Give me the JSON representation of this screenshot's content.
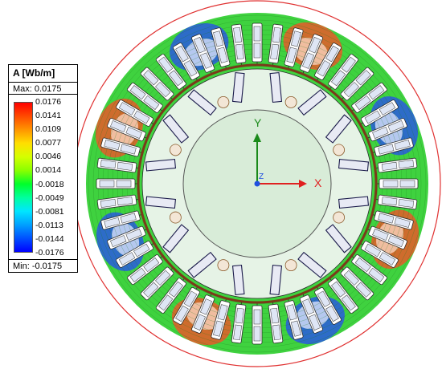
{
  "legend": {
    "title": "A [Wb/m]",
    "max_label": "Max: 0.0175",
    "min_label": "Min: -0.0175",
    "ticks": [
      "0.0176",
      "0.0141",
      "0.0109",
      "0.0077",
      "0.0046",
      "0.0014",
      "-0.0018",
      "-0.0049",
      "-0.0081",
      "-0.0113",
      "-0.0144",
      "-0.0176"
    ],
    "colors": [
      "#ff0000",
      "#ff4a00",
      "#ff9500",
      "#ffdf00",
      "#d4ff00",
      "#8aff00",
      "#00ff2b",
      "#00ff9e",
      "#00e6ff",
      "#00a0ff",
      "#0050ff",
      "#0000ff"
    ]
  },
  "axes": {
    "x_label": "X",
    "y_label": "Y",
    "z_label": "Z",
    "x_color": "#e02020",
    "y_color": "#1a8a1a",
    "z_color": "#2050e0"
  },
  "machine": {
    "stator_slots": 48,
    "rotor_magnets": 16,
    "poles": 8,
    "outer_boundary_color": "#e03030",
    "rotor_core_color": "#d8ecd8",
    "magnet_outline_color": "#1a1a4a",
    "pole_flux_colors": [
      "#e85a2a",
      "#2a5ae0"
    ]
  }
}
